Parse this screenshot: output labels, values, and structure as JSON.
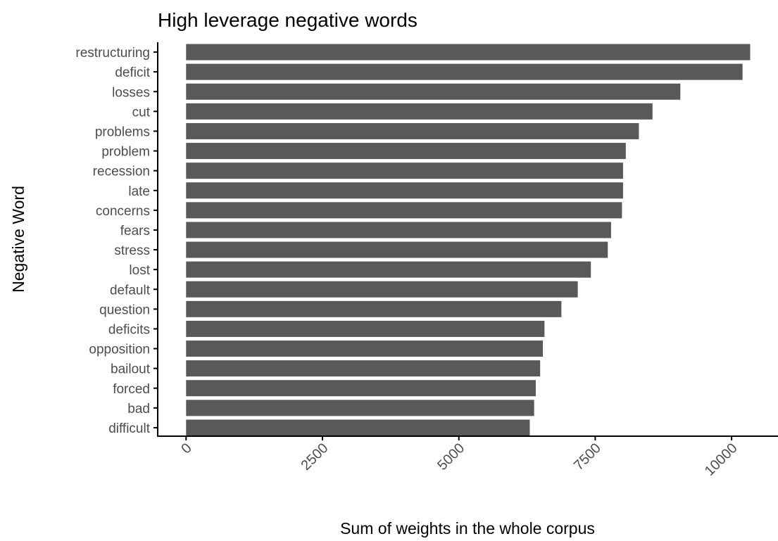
{
  "chart_data": {
    "type": "bar",
    "orientation": "horizontal",
    "title": "High leverage negative words",
    "xlabel": "Sum of weights in the whole corpus",
    "ylabel": "Negative Word",
    "categories": [
      "restructuring",
      "deficit",
      "losses",
      "cut",
      "problems",
      "problem",
      "recession",
      "late",
      "concerns",
      "fears",
      "stress",
      "lost",
      "default",
      "question",
      "deficits",
      "opposition",
      "bailout",
      "forced",
      "bad",
      "difficult"
    ],
    "values": [
      10340,
      10200,
      9060,
      8550,
      8300,
      8060,
      8010,
      8010,
      7990,
      7790,
      7730,
      7420,
      7180,
      6880,
      6570,
      6540,
      6490,
      6410,
      6380,
      6300
    ],
    "xlim": [
      -520,
      10850
    ],
    "xticks": [
      "0",
      "2500",
      "5000",
      "7500",
      "10000"
    ],
    "xtick_values": [
      0,
      2500,
      5000,
      7500,
      10000
    ],
    "grid": false,
    "legend": "none",
    "bar_color": "#595959"
  }
}
